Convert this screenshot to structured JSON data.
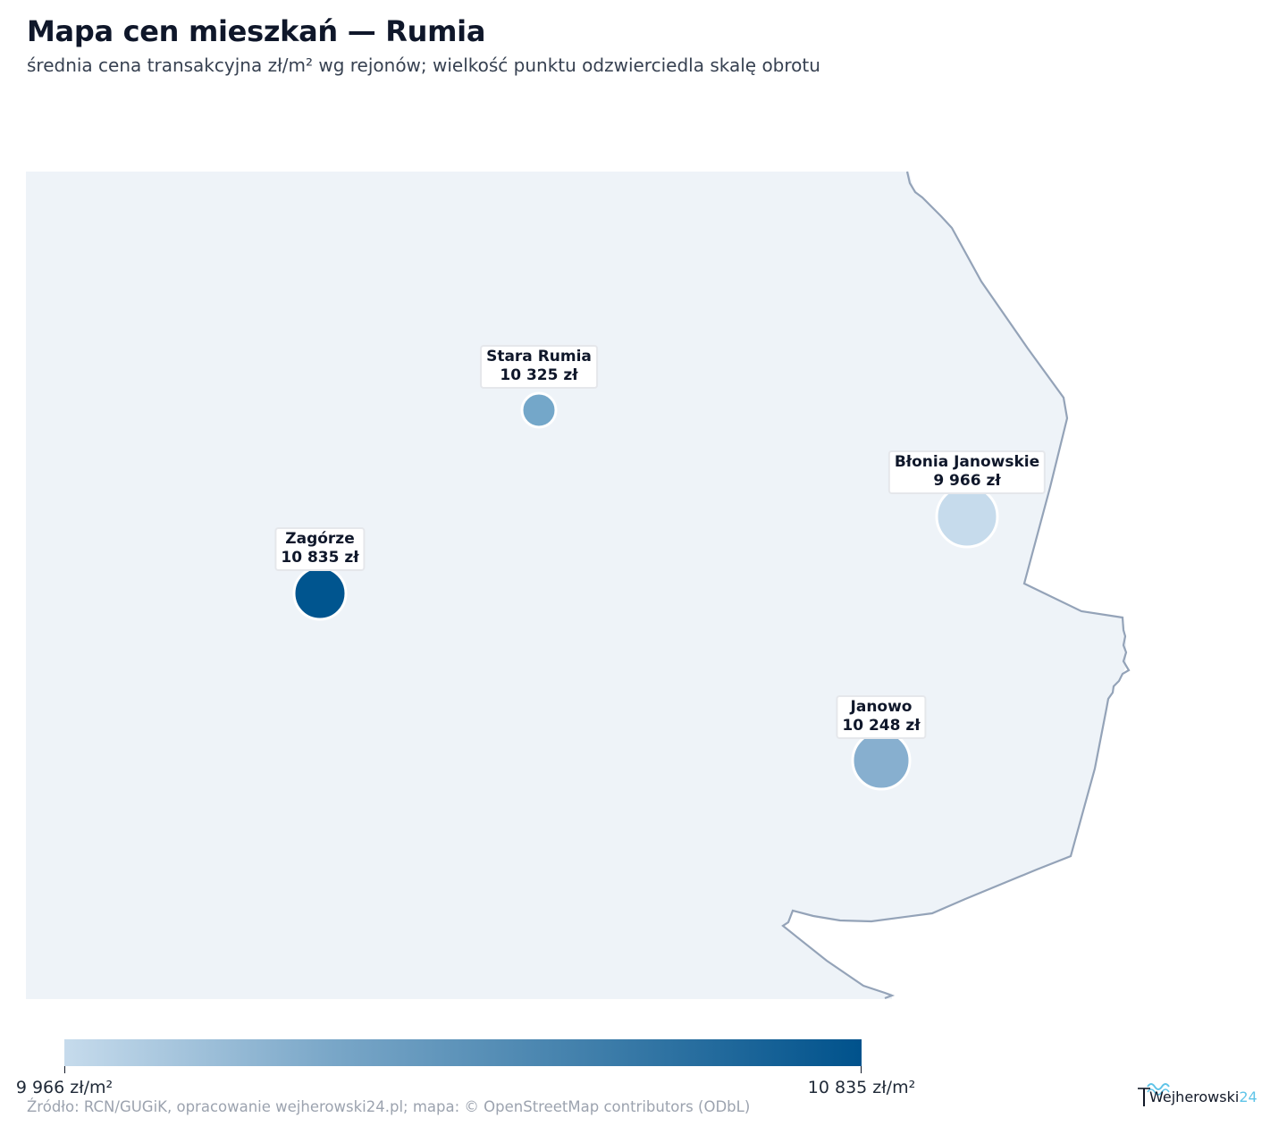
{
  "header": {
    "title": "Mapa cen mieszkań — Rumia",
    "subtitle": "średnia cena transakcyjna zł/m² wg rejonów; wielkość punktu odzwierciedla skalę obrotu"
  },
  "map": {
    "area_fill": "#eef3f8",
    "boundary_color": "#94a3b8",
    "marker_stroke": "#ffffff",
    "districts": [
      {
        "name": "Stara Rumia",
        "price_label": "10 325 zł",
        "price": 10325,
        "color": "#74a7c9"
      },
      {
        "name": "Błonia Janowskie",
        "price_label": "9 966 zł",
        "price": 9966,
        "color": "#c6dbec"
      },
      {
        "name": "Zagórze",
        "price_label": "10 835 zł",
        "price": 10835,
        "color": "#00558f"
      },
      {
        "name": "Janowo",
        "price_label": "10 248 zł",
        "price": 10248,
        "color": "#87afcf"
      }
    ]
  },
  "legend": {
    "min_label": "9 966 zł/m²",
    "max_label": "10 835 zł/m²",
    "min_value": 9966,
    "max_value": 10835,
    "color_low": "#c6dbec",
    "color_high": "#00528c"
  },
  "footer": {
    "source": "Źródło: RCN/GUGiK, opracowanie wejherowski24.pl; mapa: © OpenStreetMap contributors (ODbL)",
    "logo_text": "Wejherowski",
    "logo_num": "24"
  }
}
